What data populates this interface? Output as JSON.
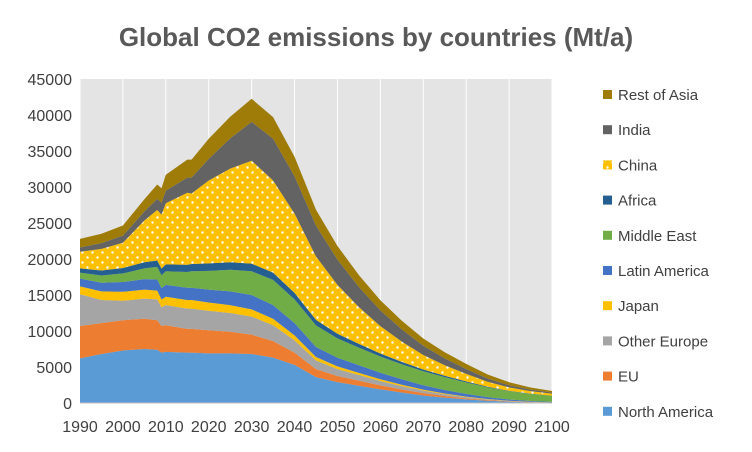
{
  "chart_data": {
    "type": "area",
    "stacked": true,
    "title": "Global CO2 emissions by countries (Mt/a)",
    "xlabel": "",
    "ylabel": "",
    "xlim": [
      1990,
      2100
    ],
    "ylim": [
      0,
      45000
    ],
    "x_ticks": [
      1990,
      2000,
      2010,
      2020,
      2030,
      2040,
      2050,
      2060,
      2070,
      2080,
      2090,
      2100
    ],
    "y_ticks": [
      0,
      5000,
      10000,
      15000,
      20000,
      25000,
      30000,
      35000,
      40000,
      45000
    ],
    "grid": "vertical",
    "legend_position": "right",
    "x": [
      1990,
      1995,
      2000,
      2005,
      2008,
      2009,
      2010,
      2015,
      2016,
      2020,
      2025,
      2030,
      2035,
      2040,
      2045,
      2050,
      2055,
      2060,
      2065,
      2070,
      2075,
      2080,
      2085,
      2090,
      2095,
      2100
    ],
    "series": [
      {
        "name": "North America",
        "color": "#5b9bd5",
        "values": [
          6200,
          6800,
          7300,
          7500,
          7400,
          7000,
          7100,
          7000,
          7000,
          6900,
          6900,
          6800,
          6300,
          5300,
          3600,
          2900,
          2400,
          1900,
          1450,
          1050,
          750,
          500,
          320,
          170,
          90,
          50
        ]
      },
      {
        "name": "EU",
        "color": "#ed7d31",
        "values": [
          4500,
          4300,
          4200,
          4200,
          4100,
          3700,
          3700,
          3300,
          3300,
          3200,
          3000,
          2700,
          2300,
          1700,
          1100,
          850,
          700,
          550,
          430,
          320,
          220,
          150,
          90,
          55,
          30,
          15
        ]
      },
      {
        "name": "Other Europe",
        "color": "#a5a5a5",
        "values": [
          4400,
          3200,
          2700,
          2800,
          2900,
          2600,
          2800,
          2800,
          2800,
          2700,
          2600,
          2500,
          2200,
          1700,
          1200,
          950,
          780,
          600,
          470,
          350,
          250,
          170,
          100,
          60,
          35,
          20
        ]
      },
      {
        "name": "Japan",
        "color": "#ffc000",
        "values": [
          1100,
          1200,
          1250,
          1250,
          1200,
          1100,
          1150,
          1200,
          1200,
          1150,
          1100,
          1000,
          900,
          700,
          480,
          380,
          310,
          250,
          190,
          140,
          100,
          70,
          45,
          28,
          16,
          10
        ]
      },
      {
        "name": "Latin America",
        "color": "#4472c4",
        "values": [
          1100,
          1200,
          1350,
          1450,
          1550,
          1550,
          1650,
          1700,
          1700,
          1800,
          1900,
          2000,
          1900,
          1700,
          1400,
          1200,
          1050,
          900,
          750,
          600,
          480,
          370,
          260,
          170,
          100,
          60
        ]
      },
      {
        "name": "Middle East",
        "color": "#70ad47",
        "values": [
          800,
          1000,
          1200,
          1500,
          1750,
          1800,
          1900,
          2200,
          2300,
          2600,
          3000,
          3300,
          3500,
          3300,
          3000,
          2700,
          2450,
          2250,
          2100,
          1950,
          1800,
          1600,
          1350,
          1150,
          1000,
          850
        ]
      },
      {
        "name": "Africa",
        "color": "#255e91",
        "values": [
          600,
          700,
          750,
          850,
          900,
          920,
          950,
          1000,
          1000,
          1050,
          1050,
          1050,
          1000,
          900,
          760,
          630,
          520,
          420,
          330,
          250,
          190,
          140,
          90,
          55,
          30,
          20
        ]
      },
      {
        "name": "China",
        "color": "#ffc000",
        "pattern": true,
        "values": [
          2300,
          3000,
          3500,
          5800,
          7000,
          7500,
          8500,
          10000,
          9800,
          11500,
          13000,
          14300,
          12800,
          11000,
          8800,
          6800,
          5100,
          3800,
          2800,
          2000,
          1450,
          1050,
          700,
          480,
          350,
          280
        ]
      },
      {
        "name": "India",
        "color": "#636363",
        "values": [
          600,
          800,
          1000,
          1250,
          1550,
          1650,
          1750,
          2100,
          2200,
          3000,
          4200,
          5400,
          5800,
          5200,
          4300,
          3500,
          2800,
          2200,
          1700,
          1300,
          950,
          680,
          450,
          300,
          200,
          150
        ]
      },
      {
        "name": "Rest of Asia",
        "color": "#9e7c07",
        "values": [
          1200,
          1300,
          1400,
          1700,
          2000,
          2000,
          2200,
          2500,
          2500,
          2800,
          3000,
          3200,
          3000,
          2700,
          2200,
          1900,
          1650,
          1400,
          1200,
          1000,
          850,
          700,
          560,
          420,
          300,
          220
        ]
      }
    ]
  }
}
